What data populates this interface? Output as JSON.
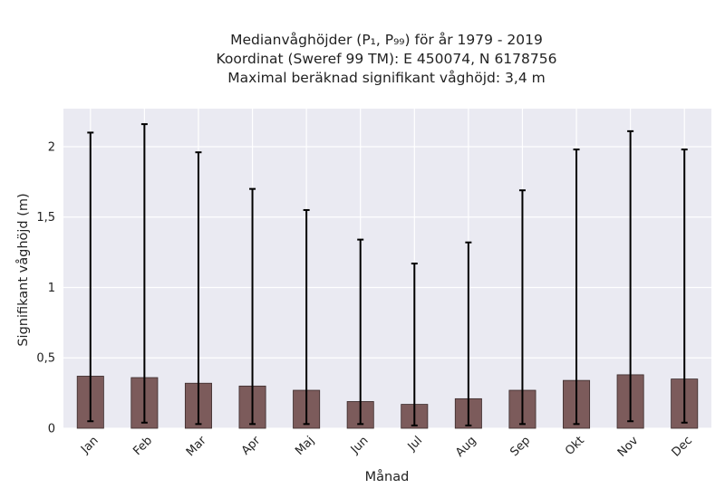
{
  "chart_data": {
    "type": "bar",
    "title_lines": [
      "Medianvåghöjder (P₁, P₉₉) för år 1979 - 2019",
      "Koordinat (Sweref 99 TM): E 450074, N 6178756",
      "Maximal beräknad signifikant våghöjd: 3,4 m"
    ],
    "xlabel": "Månad",
    "ylabel": "Signifikant våghöjd (m)",
    "categories": [
      "Jan",
      "Feb",
      "Mar",
      "Apr",
      "Maj",
      "Jun",
      "Jul",
      "Aug",
      "Sep",
      "Okt",
      "Nov",
      "Dec"
    ],
    "values": [
      0.37,
      0.36,
      0.32,
      0.3,
      0.27,
      0.19,
      0.17,
      0.21,
      0.27,
      0.34,
      0.38,
      0.35
    ],
    "p1": [
      0.05,
      0.04,
      0.03,
      0.03,
      0.03,
      0.03,
      0.02,
      0.02,
      0.03,
      0.03,
      0.05,
      0.04
    ],
    "p99": [
      2.1,
      2.16,
      1.96,
      1.7,
      1.55,
      1.34,
      1.17,
      1.32,
      1.69,
      1.98,
      2.11,
      1.98
    ],
    "ylim": [
      0,
      2.27
    ],
    "yticks": [
      0,
      0.5,
      1,
      1.5,
      2
    ],
    "ytick_labels": [
      "0",
      "0,5",
      "1",
      "1,5",
      "2"
    ],
    "grid": true,
    "colors": {
      "bar": "#7c5b5b",
      "bar_edge": "#3a2a2a",
      "errorbar": "#000000",
      "plot_bg": "#eaeaf2",
      "grid": "#ffffff"
    }
  }
}
